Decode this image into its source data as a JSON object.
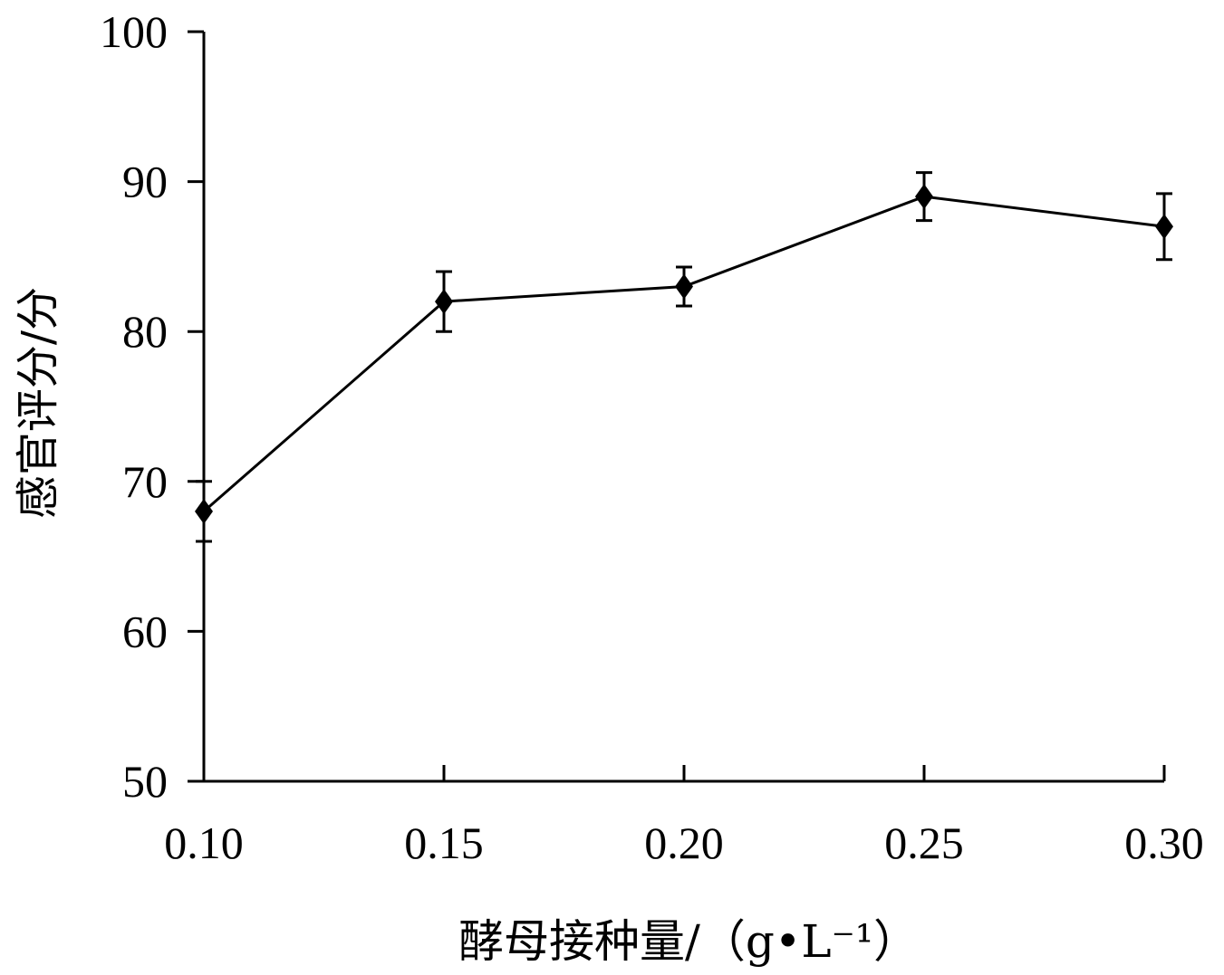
{
  "chart_data": {
    "type": "line",
    "xlabel": "酵母接种量/（g•L⁻¹）",
    "ylabel": "感官评分/分",
    "x": [
      0.1,
      0.15,
      0.2,
      0.25,
      0.3
    ],
    "x_tick_labels": [
      "0.10",
      "0.15",
      "0.20",
      "0.25",
      "0.30"
    ],
    "y_ticks": [
      50,
      60,
      70,
      80,
      90,
      100
    ],
    "y_tick_labels": [
      "50",
      "60",
      "70",
      "80",
      "90",
      "100"
    ],
    "xlim": [
      0.1,
      0.3
    ],
    "ylim": [
      50,
      100
    ],
    "grid": false,
    "marker": "diamond",
    "series": [
      {
        "values": [
          68,
          82,
          83,
          89,
          87
        ],
        "error": [
          2,
          2,
          1.3,
          1.6,
          2.2
        ],
        "color": "#000000"
      }
    ]
  }
}
